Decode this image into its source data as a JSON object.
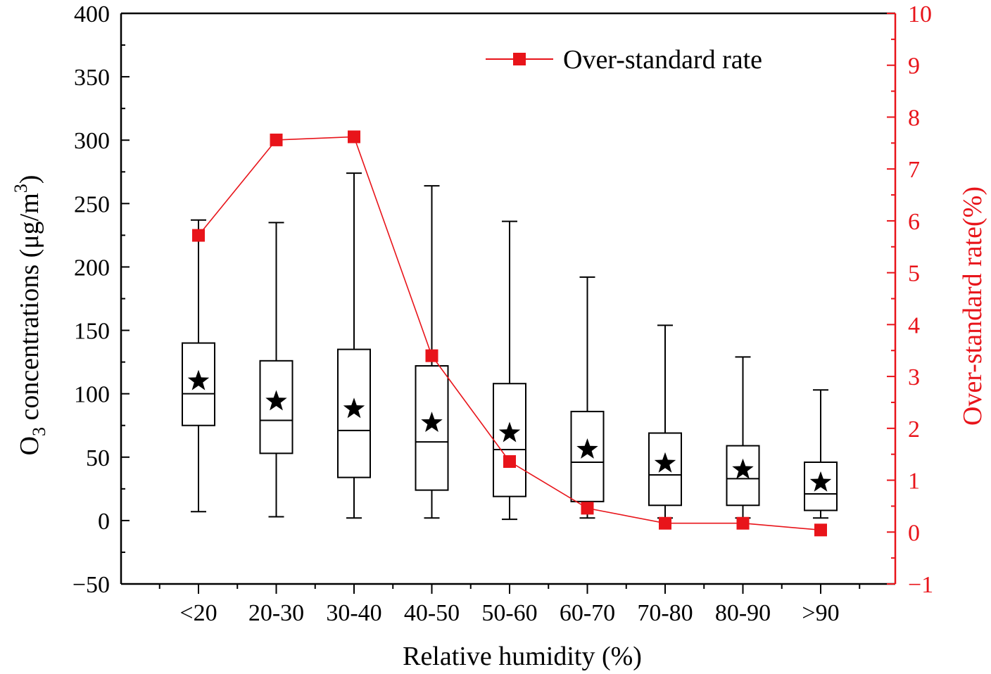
{
  "chart_data": {
    "type": "box",
    "xlabel": "Relative humidity (%)",
    "ylabel_left": {
      "prefix": "O",
      "sub": "3",
      "middle": " concentrations (μg/m",
      "sup": "3",
      "suffix": ")"
    },
    "ylabel_right": "Over-standard rate(%)",
    "categories": [
      "<20",
      "20-30",
      "30-40",
      "40-50",
      "50-60",
      "60-70",
      "70-80",
      "80-90",
      ">90"
    ],
    "left_axis": {
      "ylim": [
        -50,
        400
      ],
      "major_ticks": [
        -50,
        0,
        50,
        100,
        150,
        200,
        250,
        300,
        350,
        400
      ],
      "tick_labels": [
        "−50",
        "0",
        "50",
        "100",
        "150",
        "200",
        "250",
        "300",
        "350",
        "400"
      ]
    },
    "right_axis": {
      "ylim": [
        -1,
        10
      ],
      "major_ticks": [
        -1,
        0,
        1,
        2,
        3,
        4,
        5,
        6,
        7,
        8,
        9,
        10
      ],
      "tick_labels": [
        "−1",
        "0",
        "1",
        "2",
        "3",
        "4",
        "5",
        "6",
        "7",
        "8",
        "9",
        "10"
      ],
      "color": "#e8141a"
    },
    "boxes": [
      {
        "category": "<20",
        "min": 7,
        "q1": 75,
        "median": 100,
        "q3": 140,
        "max": 237,
        "mean": 110
      },
      {
        "category": "20-30",
        "min": 3,
        "q1": 53,
        "median": 79,
        "q3": 126,
        "max": 235,
        "mean": 94
      },
      {
        "category": "30-40",
        "min": 2,
        "q1": 34,
        "median": 71,
        "q3": 135,
        "max": 274,
        "mean": 88
      },
      {
        "category": "40-50",
        "min": 2,
        "q1": 24,
        "median": 62,
        "q3": 122,
        "max": 264,
        "mean": 77
      },
      {
        "category": "50-60",
        "min": 1,
        "q1": 19,
        "median": 56,
        "q3": 108,
        "max": 236,
        "mean": 69
      },
      {
        "category": "60-70",
        "min": 2,
        "q1": 15,
        "median": 46,
        "q3": 86,
        "max": 192,
        "mean": 56
      },
      {
        "category": "70-80",
        "min": 2,
        "q1": 12,
        "median": 36,
        "q3": 69,
        "max": 154,
        "mean": 45
      },
      {
        "category": "80-90",
        "min": 2,
        "q1": 12,
        "median": 33,
        "q3": 59,
        "max": 129,
        "mean": 40
      },
      {
        "category": ">90",
        "min": 2,
        "q1": 8,
        "median": 21,
        "q3": 46,
        "max": 103,
        "mean": 30
      }
    ],
    "over_standard_rate": {
      "name": "Over-standard rate",
      "color": "#e8141a",
      "values": [
        5.72,
        7.56,
        7.62,
        3.4,
        1.36,
        0.46,
        0.17,
        0.17,
        0.04
      ]
    },
    "legend": {
      "label": "Over-standard rate",
      "position": "top-right"
    },
    "colors": {
      "axis": "#000000",
      "box": "#000000",
      "series": "#e8141a",
      "background": "#ffffff"
    }
  }
}
